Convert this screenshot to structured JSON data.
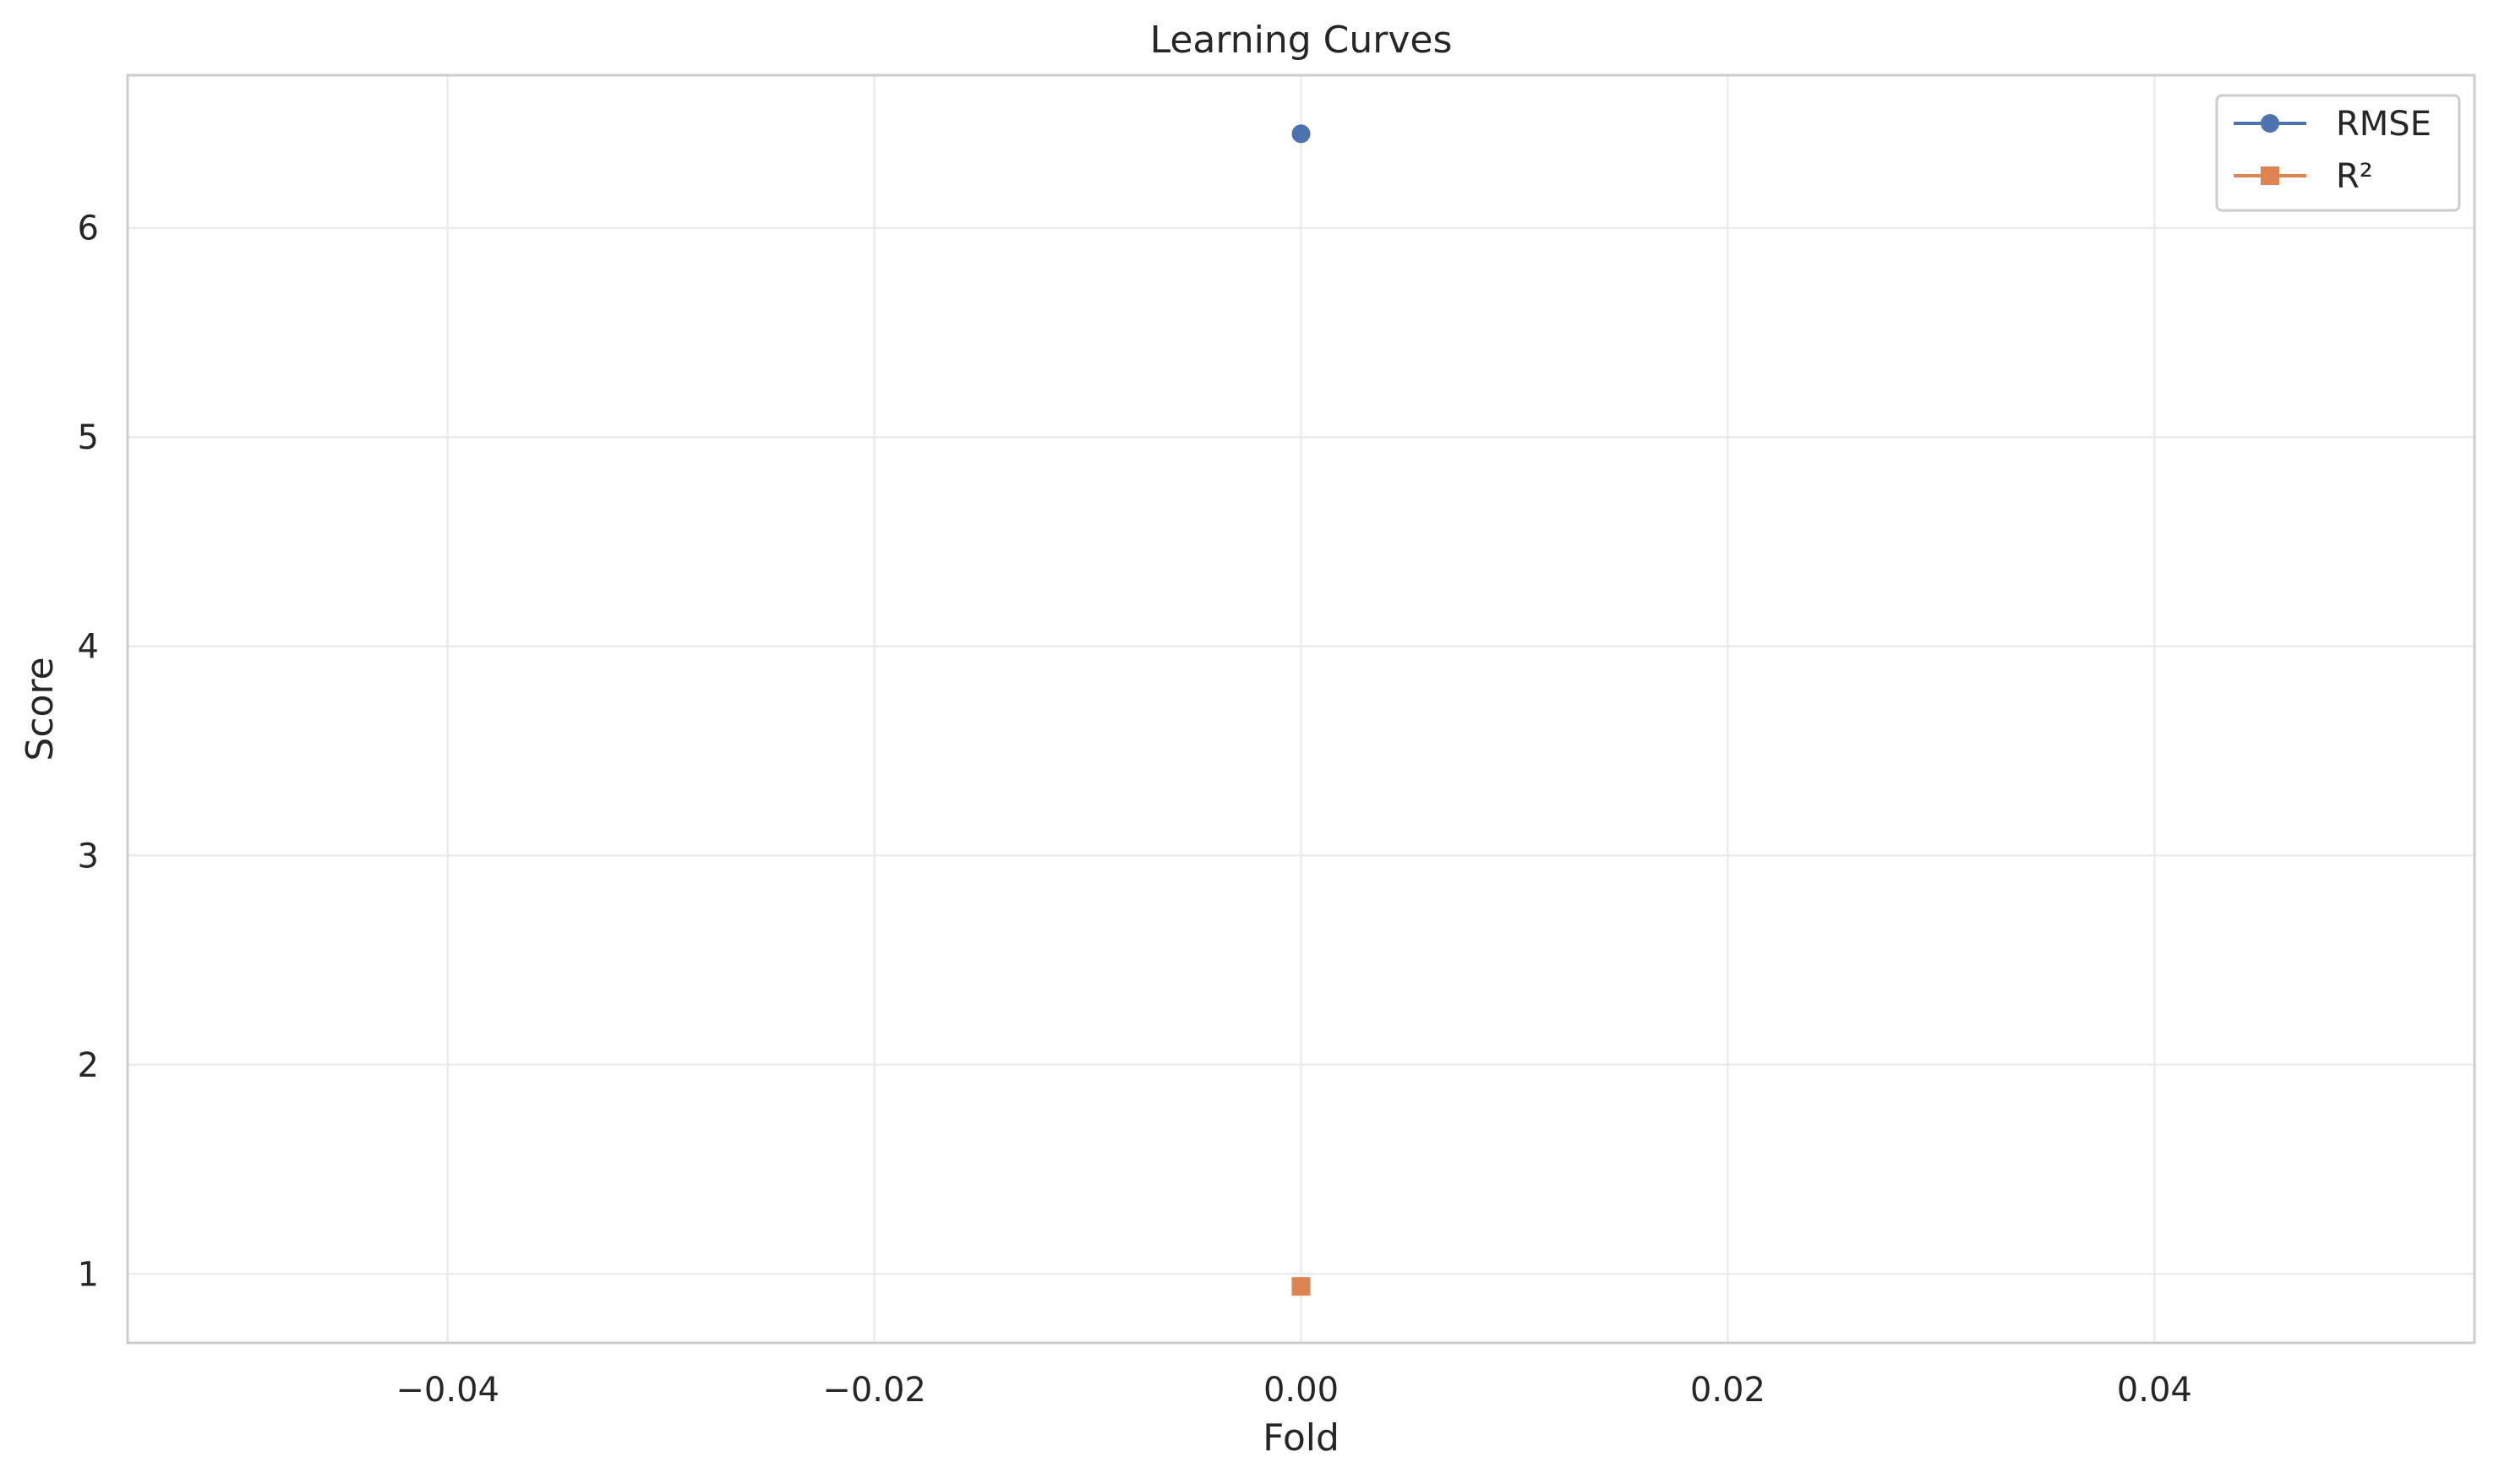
{
  "chart_data": {
    "type": "line",
    "title": "Learning Curves",
    "xlabel": "Fold",
    "ylabel": "Score",
    "xlim": [
      -0.055,
      0.055
    ],
    "ylim": [
      0.67,
      6.73
    ],
    "xticks": [
      -0.04,
      -0.02,
      0.0,
      0.02,
      0.04
    ],
    "xtick_labels": [
      "−0.04",
      "−0.02",
      "0.00",
      "0.02",
      "0.04"
    ],
    "yticks": [
      1,
      2,
      3,
      4,
      5,
      6
    ],
    "ytick_labels": [
      "1",
      "2",
      "3",
      "4",
      "5",
      "6"
    ],
    "grid": true,
    "legend_position": "top-right",
    "series": [
      {
        "name": "RMSE",
        "marker": "circle",
        "color": "#4c72b0",
        "x": [
          0
        ],
        "y": [
          6.45
        ]
      },
      {
        "name": "R²",
        "marker": "square",
        "color": "#dd8452",
        "x": [
          0
        ],
        "y": [
          0.94
        ]
      }
    ]
  }
}
